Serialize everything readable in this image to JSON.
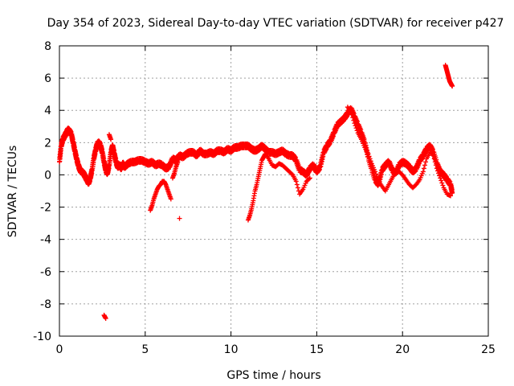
{
  "chart_data": {
    "type": "scatter",
    "title": "Day 354 of 2023, Sidereal Day-to-day VTEC variation (SDTVAR) for receiver p427",
    "xlabel": "GPS time / hours",
    "ylabel": "SDTVAR / TECUs",
    "xlim": [
      0,
      25
    ],
    "ylim": [
      -10,
      8
    ],
    "xticks": [
      0,
      5,
      10,
      15,
      20,
      25
    ],
    "yticks": [
      -10,
      -8,
      -6,
      -4,
      -2,
      0,
      2,
      4,
      6,
      8
    ],
    "grid": true,
    "marker": "+",
    "color": "#ff0000",
    "series": [
      {
        "name": "SDTVAR",
        "x": [
          0.0,
          0.1,
          0.2,
          0.3,
          0.4,
          0.5,
          0.6,
          0.7,
          0.8,
          0.9,
          1.0,
          1.1,
          1.2,
          1.3,
          1.4,
          1.5,
          1.6,
          1.7,
          1.8,
          1.9,
          2.0,
          2.1,
          2.2,
          2.3,
          2.4,
          2.5,
          2.6,
          2.7,
          2.8,
          2.9,
          3.0,
          3.1,
          3.2,
          3.3,
          3.4,
          3.5,
          3.6,
          3.7,
          3.8,
          3.9,
          4.0,
          4.2,
          4.4,
          4.6,
          4.8,
          5.0,
          5.2,
          5.4,
          5.6,
          5.8,
          6.0,
          6.2,
          6.4,
          6.6,
          6.8,
          7.0,
          7.2,
          7.4,
          7.6,
          7.8,
          8.0,
          8.2,
          8.4,
          8.6,
          8.8,
          9.0,
          9.2,
          9.4,
          9.6,
          9.8,
          10.0,
          10.2,
          10.4,
          10.6,
          10.8,
          11.0,
          11.2,
          11.4,
          11.6,
          11.8,
          12.0,
          12.2,
          12.4,
          12.6,
          12.8,
          13.0,
          13.2,
          13.4,
          13.6,
          13.8,
          14.0,
          14.2,
          14.4,
          14.6,
          14.8,
          15.0,
          15.2,
          15.4,
          15.6,
          15.8,
          16.0,
          16.2,
          16.4,
          16.6,
          16.8,
          17.0,
          17.2,
          17.4,
          17.6,
          17.8,
          18.0,
          18.2,
          18.4,
          18.6,
          18.8,
          19.0,
          19.2,
          19.4,
          19.6,
          19.8,
          20.0,
          20.2,
          20.4,
          20.6,
          20.8,
          21.0,
          21.2,
          21.4,
          21.6,
          21.8,
          22.0,
          22.2,
          22.4,
          22.6,
          22.8,
          22.9
        ],
        "y": [
          0.8,
          1.8,
          2.2,
          2.4,
          2.6,
          2.8,
          2.7,
          2.5,
          2.0,
          1.5,
          1.0,
          0.6,
          0.3,
          0.2,
          0.1,
          -0.1,
          -0.3,
          -0.5,
          -0.2,
          0.3,
          1.0,
          1.5,
          1.9,
          2.0,
          1.8,
          1.4,
          0.8,
          0.3,
          0.1,
          0.6,
          1.4,
          1.8,
          1.3,
          0.8,
          0.5,
          0.6,
          0.4,
          0.7,
          0.5,
          0.6,
          0.7,
          0.8,
          0.8,
          0.9,
          0.9,
          0.8,
          0.7,
          0.8,
          0.6,
          0.7,
          0.6,
          0.4,
          0.5,
          1.0,
          0.9,
          1.2,
          1.1,
          1.3,
          1.4,
          1.4,
          1.2,
          1.5,
          1.3,
          1.3,
          1.4,
          1.3,
          1.5,
          1.5,
          1.4,
          1.6,
          1.5,
          1.7,
          1.7,
          1.8,
          1.8,
          1.8,
          1.6,
          1.5,
          1.6,
          1.8,
          1.6,
          1.4,
          1.4,
          1.3,
          1.4,
          1.5,
          1.3,
          1.2,
          1.2,
          0.9,
          0.3,
          0.2,
          0.0,
          0.4,
          0.6,
          0.2,
          0.5,
          1.4,
          1.8,
          2.1,
          2.6,
          3.1,
          3.3,
          3.5,
          3.8,
          4.1,
          3.6,
          3.1,
          2.6,
          2.0,
          1.1,
          0.4,
          -0.3,
          -0.6,
          0.3,
          0.6,
          0.8,
          0.3,
          0.1,
          0.6,
          0.8,
          0.7,
          0.5,
          0.2,
          0.4,
          0.9,
          1.2,
          1.6,
          1.8,
          1.4,
          0.7,
          0.2,
          0.0,
          -0.3,
          -0.6,
          -1.1
        ],
        "x_branches": [
          5.3,
          5.4,
          5.5,
          5.6,
          5.7,
          5.8,
          5.9,
          6.0,
          6.1,
          6.2,
          6.3,
          6.4,
          6.5,
          6.6,
          6.7,
          6.8,
          6.9,
          7.0,
          11.0,
          11.1,
          11.2,
          11.3,
          11.4,
          11.5,
          11.6,
          11.7,
          11.8,
          11.9,
          12.0,
          12.2,
          12.4,
          12.6,
          12.8,
          13.0,
          13.2,
          13.4,
          13.6,
          13.8,
          14.0,
          14.2,
          14.4,
          14.6,
          16.8,
          17.0,
          17.2,
          17.4,
          17.6,
          17.8,
          18.0,
          18.2,
          18.4,
          18.6,
          18.8,
          19.0,
          19.2,
          19.4,
          19.6,
          19.8,
          20.0,
          20.2,
          20.4,
          20.6,
          20.8,
          21.0,
          21.2,
          21.4,
          21.6,
          21.8,
          22.0,
          22.2,
          22.4,
          22.6,
          22.8,
          2.6,
          2.7,
          22.5,
          22.55,
          22.6,
          22.65,
          22.7,
          22.75,
          22.8,
          22.85,
          22.9,
          2.9,
          3.0
        ],
        "y_branches": [
          -2.2,
          -1.9,
          -1.5,
          -1.2,
          -0.9,
          -0.7,
          -0.6,
          -0.4,
          -0.4,
          -0.6,
          -0.9,
          -1.2,
          -1.5,
          -0.2,
          0.1,
          0.5,
          0.8,
          -2.7,
          -2.8,
          -2.5,
          -2.1,
          -1.6,
          -1.0,
          -0.6,
          -0.1,
          0.4,
          0.9,
          1.1,
          1.3,
          1.0,
          0.6,
          0.5,
          0.7,
          0.6,
          0.4,
          0.2,
          0.0,
          -0.4,
          -1.2,
          -0.9,
          -0.4,
          -0.2,
          4.2,
          3.9,
          3.2,
          2.6,
          2.2,
          1.7,
          1.3,
          0.7,
          0.2,
          -0.4,
          -0.7,
          -1.0,
          -0.6,
          -0.2,
          0.2,
          0.2,
          0.0,
          -0.3,
          -0.6,
          -0.8,
          -0.6,
          -0.3,
          0.2,
          1.0,
          1.4,
          1.2,
          0.4,
          -0.2,
          -0.8,
          -1.2,
          -1.3,
          -8.7,
          -8.9,
          6.8,
          6.6,
          6.4,
          6.2,
          6.0,
          5.8,
          5.7,
          5.6,
          5.5,
          2.5,
          2.2
        ]
      }
    ]
  }
}
